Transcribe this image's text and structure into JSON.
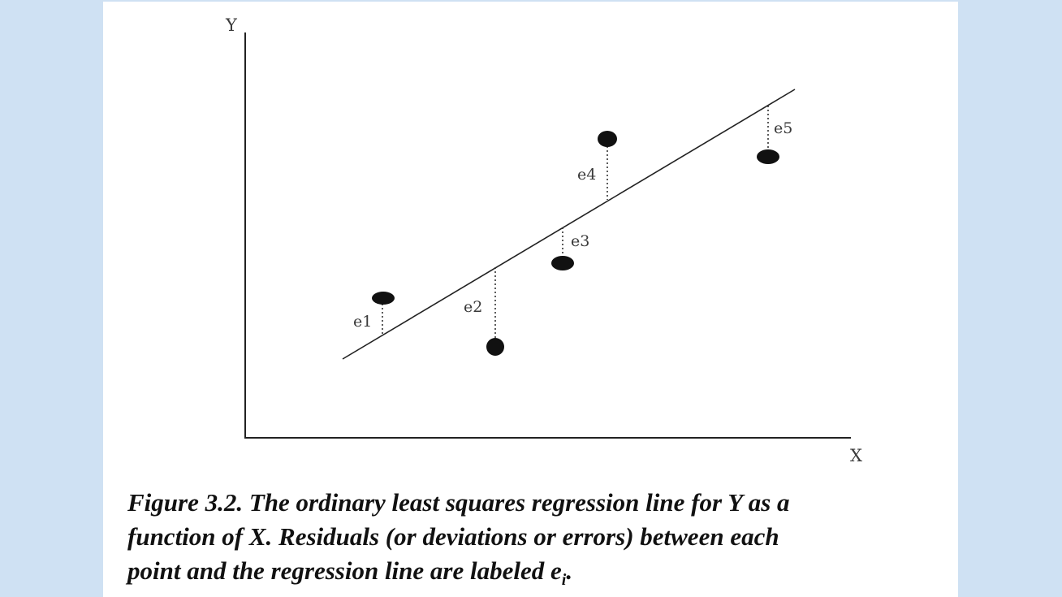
{
  "axes": {
    "y_label": "Y",
    "x_label": "X"
  },
  "residual_labels": [
    "e1",
    "e2",
    "e3",
    "e4",
    "e5"
  ],
  "caption": {
    "line1": "Figure 3.2.  The ordinary least squares regression line for Y as a",
    "line2": "function of X. Residuals (or deviations or errors) between each",
    "line3": "point and the regression line are labeled e",
    "subscript": "i",
    "end": "."
  }
}
